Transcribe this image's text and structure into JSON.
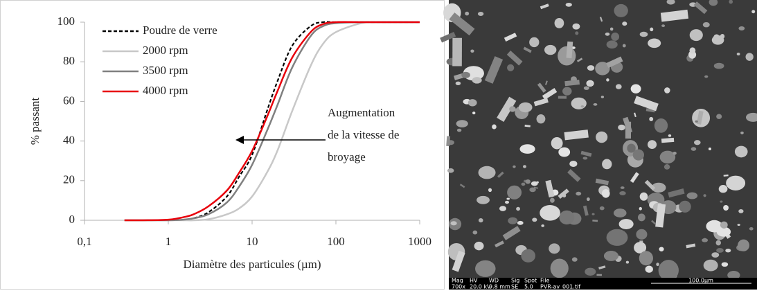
{
  "chart_data": {
    "type": "line",
    "x_label": "Diamètre des particules (µm)",
    "y_label": "% passant",
    "annotation": [
      "Augmentation",
      "de la vitesse de",
      "broyage"
    ],
    "log_x": true,
    "xlim": [
      0.1,
      1000
    ],
    "xticks": [
      {
        "value": 0.1,
        "label": "0,1"
      },
      1,
      10,
      100,
      1000
    ],
    "ylim": [
      0,
      100
    ],
    "yticks": [
      0,
      20,
      40,
      60,
      80,
      100
    ],
    "legend": "upper left",
    "x": [
      0.3,
      0.5,
      1,
      1.5,
      2,
      3,
      5,
      7,
      10,
      15,
      20,
      30,
      50,
      70,
      100,
      200,
      300,
      500,
      1000
    ],
    "series": [
      {
        "name": "Poudre de verre",
        "color": "#000000",
        "dash": true,
        "values": [
          null,
          null,
          null,
          0,
          1,
          4,
          12,
          22,
          33,
          55,
          70,
          88,
          98,
          100,
          100,
          100,
          100,
          100,
          100
        ]
      },
      {
        "name": "2000 rpm",
        "color": "#c8c8c8",
        "dash": false,
        "values": [
          0,
          0,
          0,
          0,
          0,
          0.5,
          3,
          6,
          12,
          24,
          35,
          55,
          78,
          89,
          95,
          99.5,
          100,
          100,
          100
        ]
      },
      {
        "name": "3500 rpm",
        "color": "#808080",
        "dash": false,
        "values": [
          0,
          0,
          0,
          0.3,
          1,
          3,
          9,
          17,
          28,
          45,
          58,
          77,
          93,
          98,
          99.5,
          100,
          100,
          100,
          100
        ]
      },
      {
        "name": "4000 rpm",
        "color": "#e8000b",
        "dash": false,
        "values": [
          0,
          0,
          0.3,
          1.5,
          3,
          7,
          15,
          24,
          35,
          52,
          65,
          82,
          95,
          99,
          100,
          100,
          100,
          100,
          100
        ]
      }
    ]
  },
  "sem_image": {
    "headers": [
      "Mag",
      "HV",
      "WD",
      "Sig",
      "Spot",
      "File"
    ],
    "values": [
      "700x",
      "20.0 kV",
      "9.8 mm",
      "SE",
      "5.0",
      "PVR-av_001.tif"
    ],
    "scale": "100.0µm"
  }
}
